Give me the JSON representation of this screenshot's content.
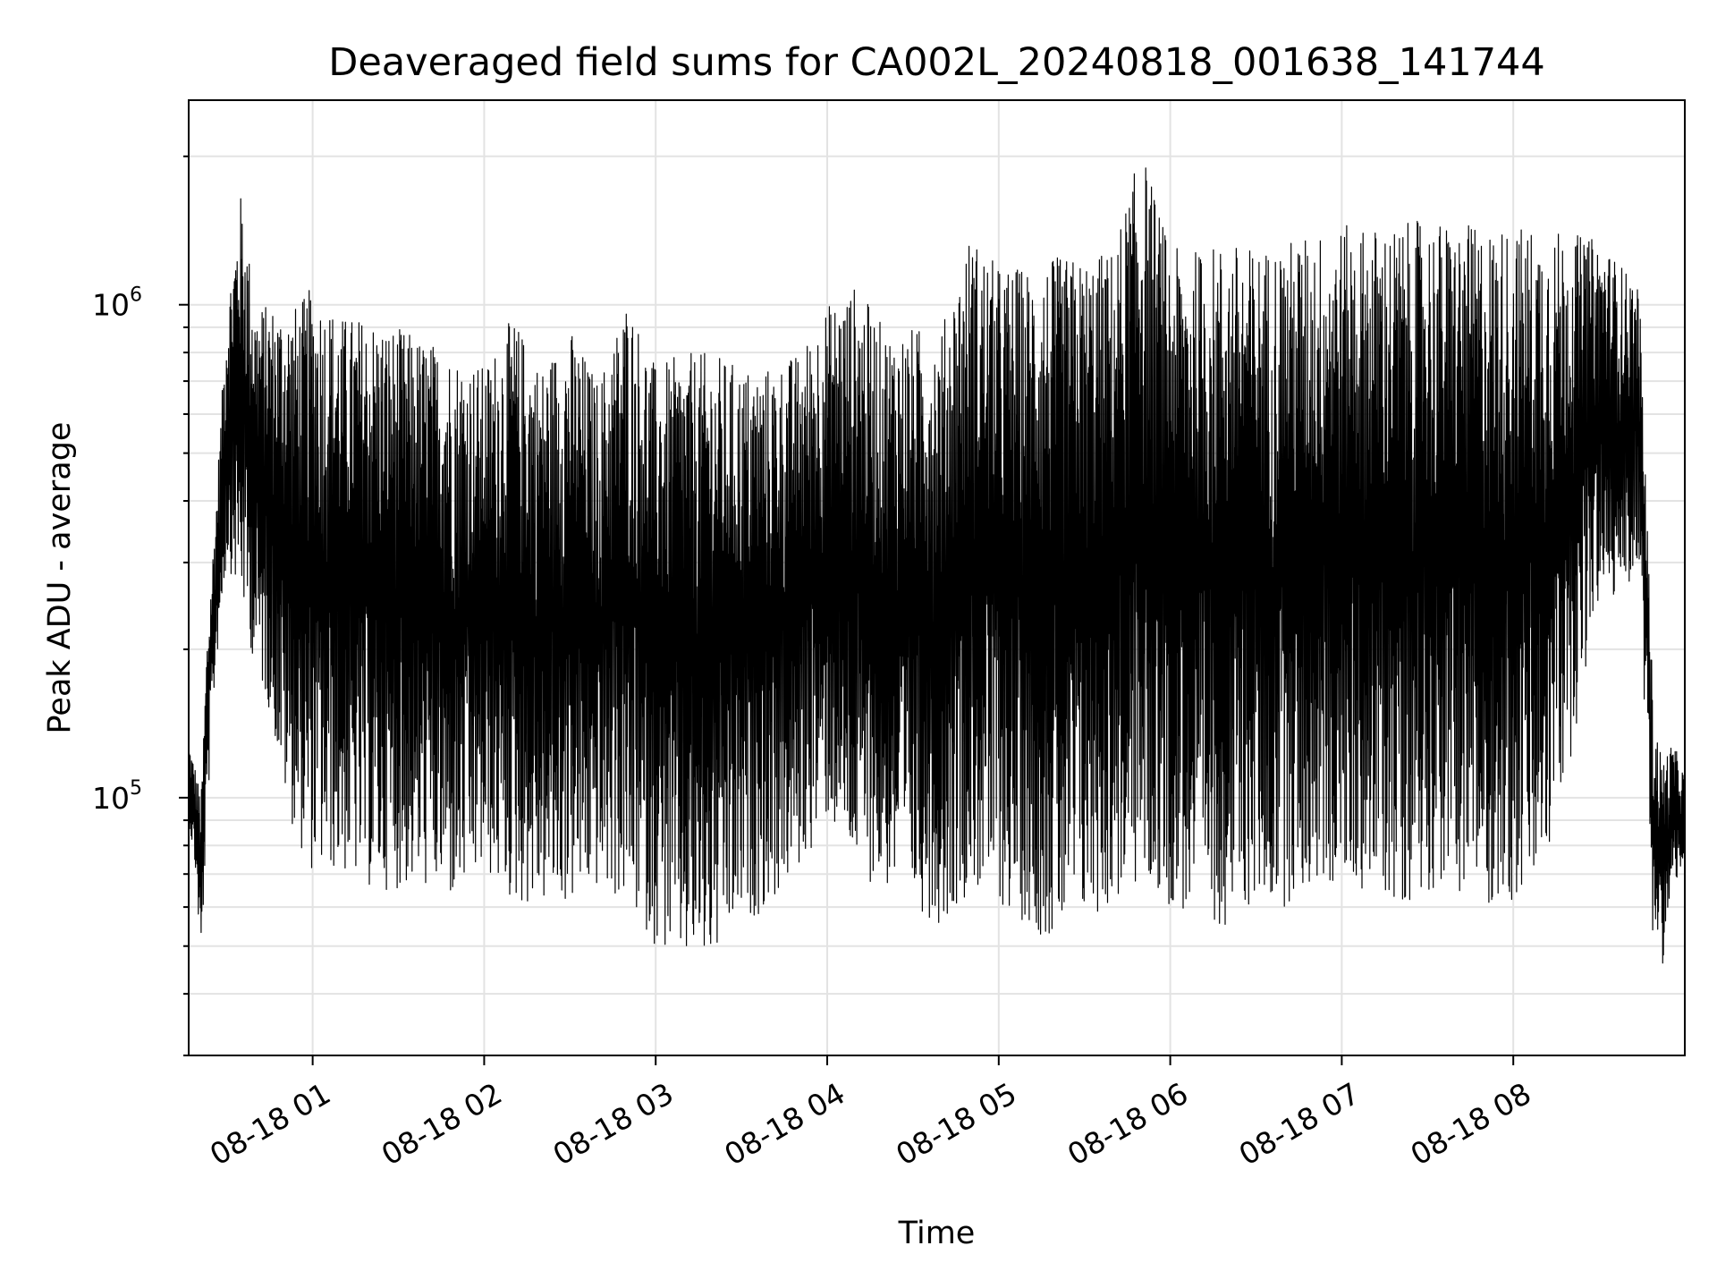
{
  "chart_data": {
    "type": "line",
    "title": "Deaveraged field sums for CA002L_20240818_001638_141744",
    "xlabel": "Time",
    "ylabel": "Peak ADU - average",
    "y_scale": "log",
    "grid": true,
    "legend": "none",
    "line_color": "#000000",
    "x_range": [
      "2024-08-18T00:16:38",
      "2024-08-18T09:00:00"
    ],
    "y_range": [
      30000,
      2600000
    ],
    "x_ticks": [
      {
        "value": "2024-08-18T01:00:00",
        "label": "08-18 01"
      },
      {
        "value": "2024-08-18T02:00:00",
        "label": "08-18 02"
      },
      {
        "value": "2024-08-18T03:00:00",
        "label": "08-18 03"
      },
      {
        "value": "2024-08-18T04:00:00",
        "label": "08-18 04"
      },
      {
        "value": "2024-08-18T05:00:00",
        "label": "08-18 05"
      },
      {
        "value": "2024-08-18T06:00:00",
        "label": "08-18 06"
      },
      {
        "value": "2024-08-18T07:00:00",
        "label": "08-18 07"
      },
      {
        "value": "2024-08-18T08:00:00",
        "label": "08-18 08"
      }
    ],
    "y_ticks": [
      {
        "value": 100000,
        "base": "10",
        "exp": "5"
      },
      {
        "value": 1000000,
        "base": "10",
        "exp": "6"
      }
    ],
    "series": [
      {
        "x": [
          "2024-08-18T00:16:38",
          "2024-08-18T00:19:00",
          "2024-08-18T00:21:00",
          "2024-08-18T00:23:00",
          "2024-08-18T00:26:00",
          "2024-08-18T00:30:00",
          "2024-08-18T00:35:00",
          "2024-08-18T00:40:00",
          "2024-08-18T00:45:00",
          "2024-08-18T00:50:00",
          "2024-08-18T00:55:00",
          "2024-08-18T01:00:00",
          "2024-08-18T01:10:00",
          "2024-08-18T01:20:00",
          "2024-08-18T01:30:00",
          "2024-08-18T01:40:00",
          "2024-08-18T01:50:00",
          "2024-08-18T02:00:00",
          "2024-08-18T02:10:00",
          "2024-08-18T02:20:00",
          "2024-08-18T02:30:00",
          "2024-08-18T02:40:00",
          "2024-08-18T02:50:00",
          "2024-08-18T03:00:00",
          "2024-08-18T03:10:00",
          "2024-08-18T03:20:00",
          "2024-08-18T03:30:00",
          "2024-08-18T03:40:00",
          "2024-08-18T03:50:00",
          "2024-08-18T04:00:00",
          "2024-08-18T04:10:00",
          "2024-08-18T04:20:00",
          "2024-08-18T04:30:00",
          "2024-08-18T04:40:00",
          "2024-08-18T04:50:00",
          "2024-08-18T05:00:00",
          "2024-08-18T05:10:00",
          "2024-08-18T05:20:00",
          "2024-08-18T05:30:00",
          "2024-08-18T05:40:00",
          "2024-08-18T05:50:00",
          "2024-08-18T06:00:00",
          "2024-08-18T06:10:00",
          "2024-08-18T06:20:00",
          "2024-08-18T06:30:00",
          "2024-08-18T06:40:00",
          "2024-08-18T06:50:00",
          "2024-08-18T07:00:00",
          "2024-08-18T07:10:00",
          "2024-08-18T07:20:00",
          "2024-08-18T07:30:00",
          "2024-08-18T07:40:00",
          "2024-08-18T07:50:00",
          "2024-08-18T08:00:00",
          "2024-08-18T08:10:00",
          "2024-08-18T08:20:00",
          "2024-08-18T08:30:00",
          "2024-08-18T08:38:00",
          "2024-08-18T08:44:00",
          "2024-08-18T08:47:00",
          "2024-08-18T08:49:00",
          "2024-08-18T08:52:00",
          "2024-08-18T08:56:00",
          "2024-08-18T09:00:00"
        ],
        "envelope_max": [
          130000,
          115000,
          100000,
          210000,
          380000,
          1000000,
          1700000,
          1000000,
          1000000,
          1000000,
          1000000,
          1100000,
          950000,
          950000,
          900000,
          850000,
          800000,
          750000,
          950000,
          750000,
          900000,
          700000,
          1050000,
          750000,
          800000,
          800000,
          750000,
          750000,
          800000,
          1000000,
          1100000,
          900000,
          900000,
          900000,
          1400000,
          1200000,
          1200000,
          1250000,
          1250000,
          1300000,
          2100000,
          1300000,
          1300000,
          1350000,
          1300000,
          1350000,
          1400000,
          1450000,
          1450000,
          1450000,
          1500000,
          1450000,
          1450000,
          1450000,
          1450000,
          1400000,
          1350000,
          1200000,
          1100000,
          350000,
          150000,
          120000,
          130000,
          110000
        ],
        "envelope_min": [
          90000,
          70000,
          45000,
          90000,
          180000,
          300000,
          250000,
          180000,
          150000,
          100000,
          80000,
          70000,
          70000,
          65000,
          65000,
          65000,
          60000,
          70000,
          60000,
          60000,
          60000,
          65000,
          60000,
          50000,
          45000,
          45000,
          55000,
          60000,
          70000,
          90000,
          70000,
          65000,
          60000,
          55000,
          65000,
          60000,
          55000,
          50000,
          55000,
          60000,
          65000,
          60000,
          55000,
          55000,
          60000,
          60000,
          65000,
          65000,
          65000,
          60000,
          65000,
          65000,
          60000,
          60000,
          65000,
          120000,
          250000,
          250000,
          300000,
          100000,
          50000,
          45000,
          65000,
          75000
        ]
      }
    ]
  }
}
